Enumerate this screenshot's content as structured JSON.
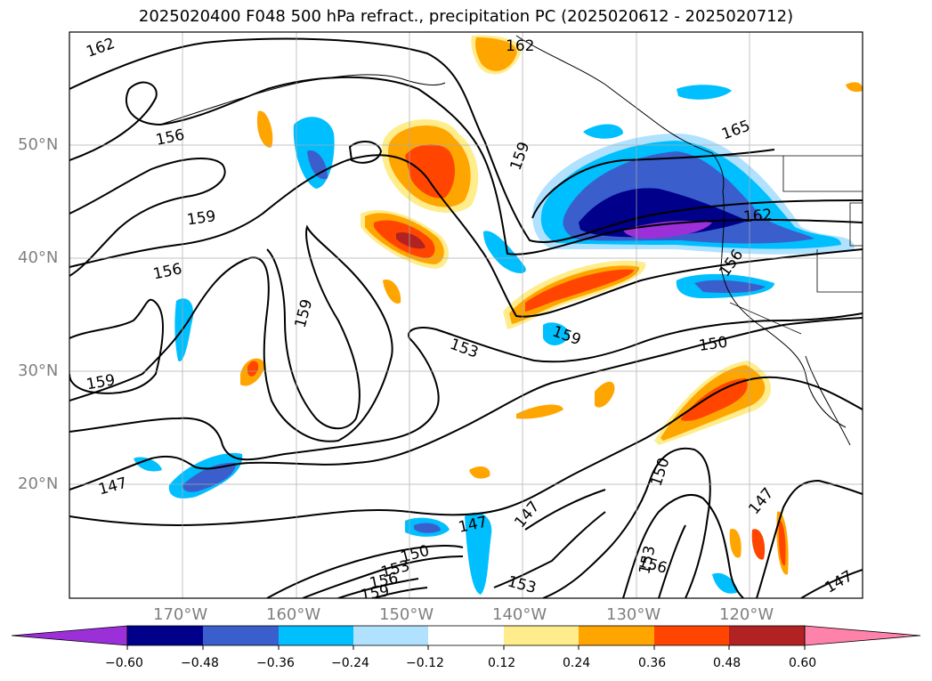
{
  "title": "2025020400 F048 500 hPa refract., precipitation PC (2025020612 - 2025020712)",
  "lat_labels": [
    "50°N",
    "40°N",
    "30°N",
    "20°N"
  ],
  "lon_labels": [
    "170°W",
    "160°W",
    "150°W",
    "140°W",
    "130°W",
    "120°W"
  ],
  "contour_labels": [
    "162",
    "156",
    "159",
    "156",
    "159",
    "159",
    "147",
    "162",
    "159",
    "165",
    "162",
    "156",
    "153",
    "159",
    "150",
    "150",
    "147",
    "147",
    "147",
    "147",
    "150",
    "153",
    "156",
    "159",
    "153",
    "153",
    "156"
  ],
  "colorbar": {
    "ticks": [
      "−0.60",
      "−0.48",
      "−0.36",
      "−0.24",
      "−0.12",
      "0.12",
      "0.24",
      "0.36",
      "0.48",
      "0.60"
    ],
    "colors": [
      "#9b30d9",
      "#00008b",
      "#3a5fcd",
      "#00bfff",
      "#b0e2ff",
      "#ffffff",
      "#ffec8b",
      "#ffa500",
      "#ff4500",
      "#b22222",
      "#ff82ab"
    ]
  }
}
